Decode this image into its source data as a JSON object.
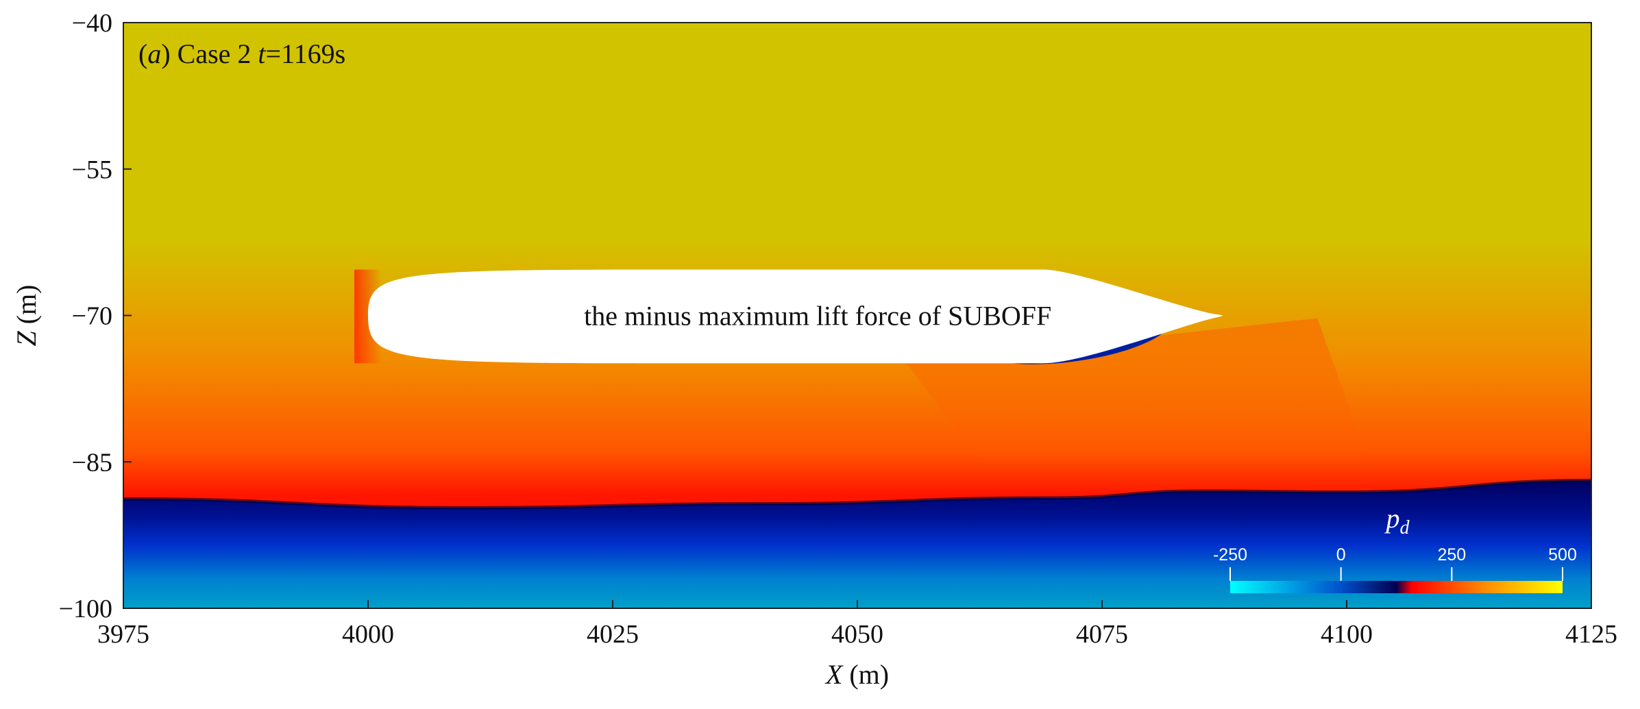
{
  "chart_data": {
    "type": "heatmap",
    "panel_label": {
      "letter": "a",
      "case": "Case 2",
      "time_var": "t",
      "time_value": "=1169s"
    },
    "body_label": "the minus maximum lift force of SUBOFF",
    "xlabel": {
      "var": "X",
      "unit": " (m)"
    },
    "ylabel": {
      "var": "Z",
      "unit": " (m)"
    },
    "xlim": [
      3975,
      4125
    ],
    "ylim": [
      -100,
      -40
    ],
    "x_ticks": [
      "3975",
      "4000",
      "4025",
      "4050",
      "4075",
      "4100",
      "4125"
    ],
    "y_ticks": [
      "−40",
      "−55",
      "−70",
      "−85",
      "−100"
    ],
    "y_tick_values": [
      -40,
      -55,
      -70,
      -85,
      -100
    ],
    "x_tick_values": [
      3975,
      4000,
      4025,
      4050,
      4075,
      4100,
      4125
    ],
    "body": {
      "nose_x": 4000,
      "tail_x": 4087,
      "axis_z": -70,
      "top_z": -65.3,
      "bottom_z": -74.9
    },
    "interface_z": [
      {
        "x": 3975,
        "z": -88.8
      },
      {
        "x": 4010,
        "z": -89.7
      },
      {
        "x": 4040,
        "z": -89.3
      },
      {
        "x": 4070,
        "z": -88.7
      },
      {
        "x": 4085,
        "z": -88.0
      },
      {
        "x": 4100,
        "z": -88.1
      },
      {
        "x": 4125,
        "z": -86.9
      }
    ],
    "colorbar": {
      "title": "p",
      "subscript": "d",
      "ticks": [
        "-250",
        "0",
        "250",
        "500"
      ],
      "tick_values": [
        -250,
        0,
        250,
        500
      ],
      "range": [
        -250,
        500
      ],
      "stops": [
        {
          "value": -250,
          "color": "#00ffff"
        },
        {
          "value": 0,
          "color": "#0050cc"
        },
        {
          "value": 125,
          "color": "#000050"
        },
        {
          "value": 160,
          "color": "#ff0000"
        },
        {
          "value": 330,
          "color": "#ff9000"
        },
        {
          "value": 500,
          "color": "#ffff00"
        }
      ]
    },
    "field_colors": {
      "upper": "#d2c300",
      "mid": "#f09000",
      "lower": "#ff1500",
      "interface": "#000060",
      "deep": "#0030cc",
      "bottom": "#00a0c8"
    }
  }
}
